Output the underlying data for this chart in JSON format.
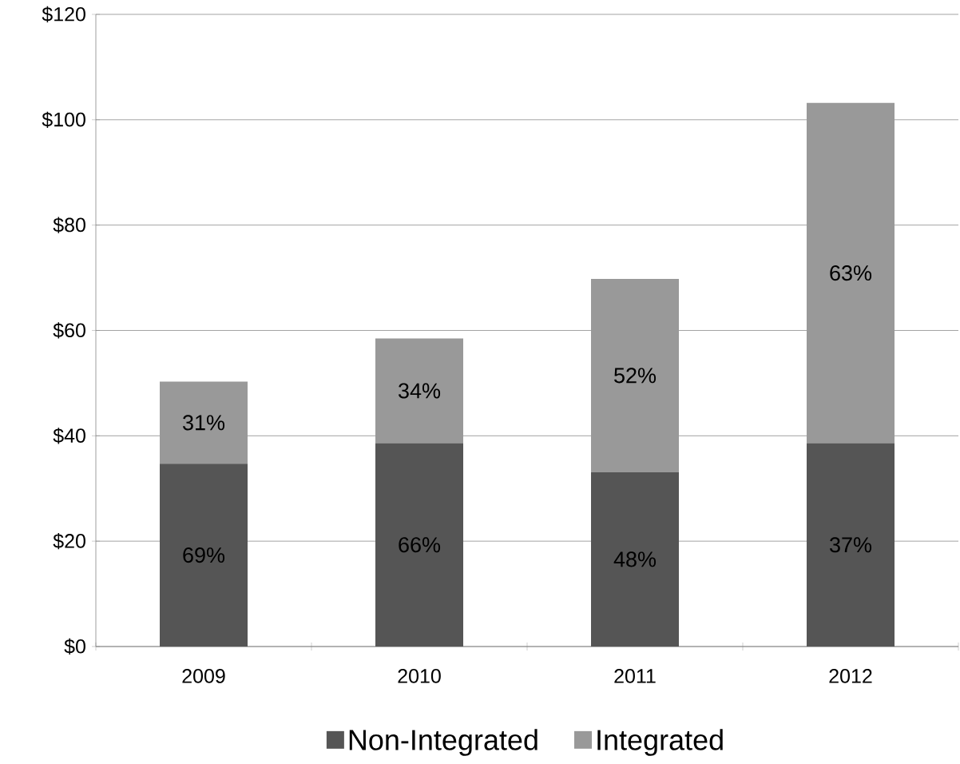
{
  "chart_data": {
    "type": "bar",
    "stacked": true,
    "categories": [
      "2009",
      "2010",
      "2011",
      "2012"
    ],
    "series": [
      {
        "name": "Non-Integrated",
        "color": "#555555",
        "values": [
          34.7,
          38.6,
          33.1,
          38.6
        ]
      },
      {
        "name": "Integrated",
        "color": "#999999",
        "values": [
          15.6,
          19.9,
          36.7,
          64.6
        ]
      }
    ],
    "annotations": [
      "69%",
      "66%",
      "48%",
      "37%",
      "31%",
      "34%",
      "52%",
      "63%"
    ],
    "ylim": [
      0,
      120
    ],
    "yticks": [
      {
        "value": 0,
        "label": "$0"
      },
      {
        "value": 20,
        "label": "$20"
      },
      {
        "value": 40,
        "label": "$40"
      },
      {
        "value": 60,
        "label": "$60"
      },
      {
        "value": 80,
        "label": "$80"
      },
      {
        "value": 100,
        "label": "$100"
      },
      {
        "value": 120,
        "label": "$120"
      }
    ],
    "grid": "y",
    "legend": "bottom"
  }
}
